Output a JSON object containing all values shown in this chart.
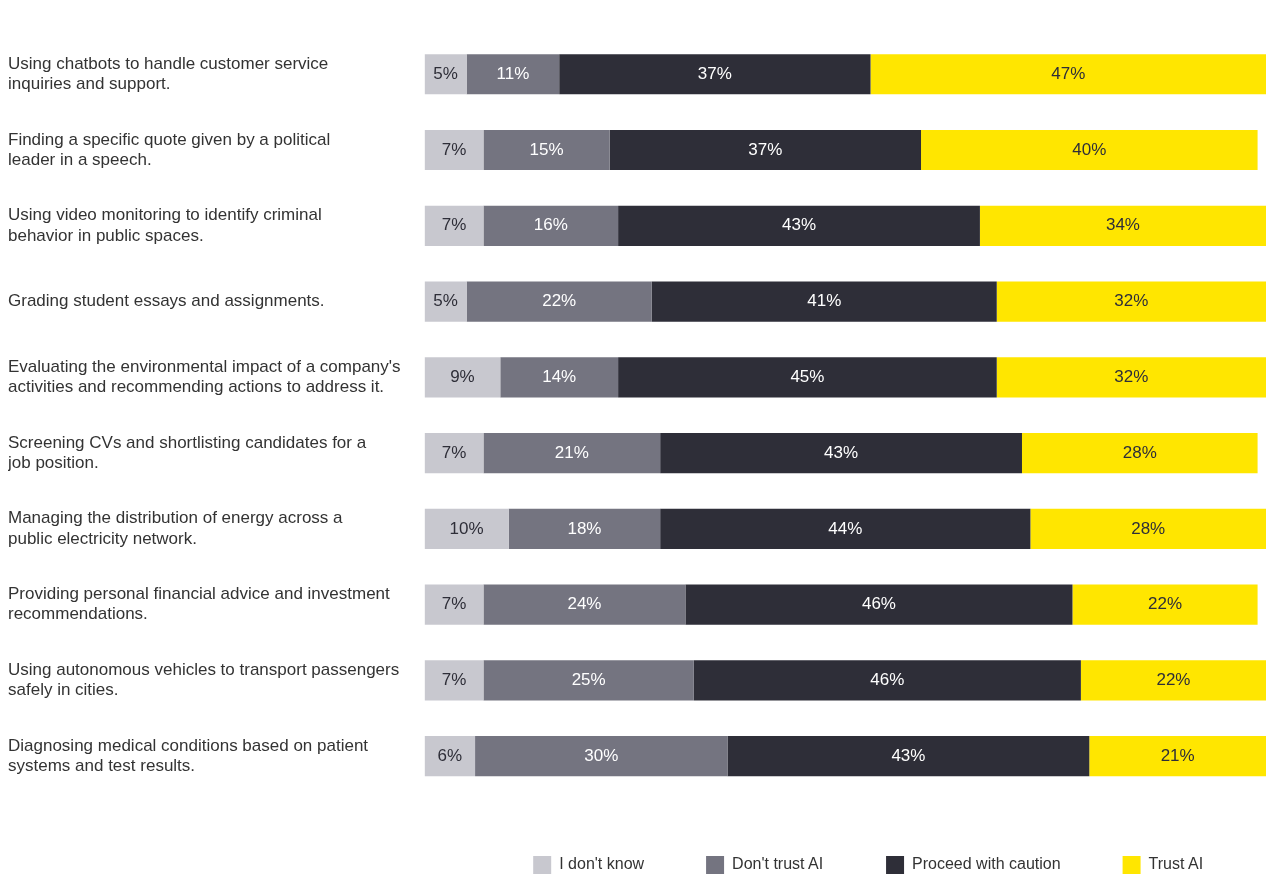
{
  "chart_data": {
    "type": "bar",
    "orientation": "horizontal",
    "stacked": true,
    "legend": "bottom",
    "categories": [
      "Using chatbots to handle customer service inquiries and support.",
      "Finding a specific quote given by a political leader in a speech.",
      "Using video monitoring to identify criminal behavior in public spaces.",
      "Grading student essays and assignments.",
      "Evaluating the environmental impact of a company's activities and recommending actions to address it.",
      "Screening CVs and shortlisting candidates for a job position.",
      "Managing the distribution of energy across a public electricity network.",
      "Providing personal financial advice and investment recommendations.",
      "Using autonomous vehicles to transport passengers safely in cities.",
      "Diagnosing medical conditions based on patient systems and test results."
    ],
    "series": [
      {
        "name": "I don't know",
        "color": "#c8c8cf",
        "values": [
          5,
          7,
          7,
          5,
          9,
          7,
          10,
          7,
          7,
          6
        ],
        "value_labels": [
          "5%",
          "7%",
          "7%",
          "5%",
          "9%",
          "7%",
          "10%",
          "7%",
          "7%",
          "6%"
        ]
      },
      {
        "name": "Don't trust AI",
        "color": "#747480",
        "values": [
          11,
          15,
          16,
          22,
          14,
          21,
          18,
          24,
          25,
          30
        ],
        "value_labels": [
          "11%",
          "15%",
          "16%",
          "22%",
          "14%",
          "21%",
          "18%",
          "24%",
          "25%",
          "30%"
        ]
      },
      {
        "name": "Proceed with caution",
        "color": "#2e2e38",
        "values": [
          37,
          37,
          43,
          41,
          45,
          43,
          44,
          46,
          46,
          43
        ],
        "value_labels": [
          "37%",
          "37%",
          "43%",
          "41%",
          "45%",
          "43%",
          "44%",
          "46%",
          "46%",
          "43%"
        ]
      },
      {
        "name": "Trust AI",
        "color": "#ffe600",
        "values": [
          47,
          40,
          34,
          32,
          32,
          28,
          28,
          22,
          22,
          21
        ],
        "value_labels": [
          "47%",
          "40%",
          "34%",
          "32%",
          "32%",
          "28%",
          "28%",
          "22%",
          "22%",
          "21%"
        ]
      }
    ]
  }
}
